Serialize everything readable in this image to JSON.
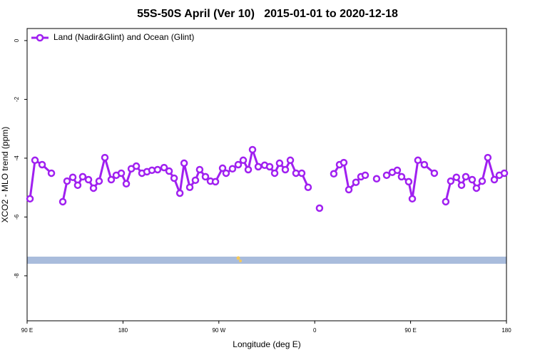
{
  "chart_data": {
    "type": "line",
    "title": "55S-50S April (Ver 10)   2015-01-01 to 2020-12-18",
    "x_label": "Longitude (deg E)",
    "y_label": "XCO2 - MLO trend (ppm)",
    "xlim": [
      90,
      540
    ],
    "ylim": [
      -9.53,
      0.41
    ],
    "xticks": [
      {
        "value": 90,
        "label": "90 E"
      },
      180,
      {
        "value": 270,
        "label": "90 W"
      },
      {
        "value": 360,
        "label": "0"
      },
      {
        "value": 450,
        "label": "90 E"
      },
      {
        "value": 540,
        "label": "180"
      }
    ],
    "yticks": [
      0,
      -2,
      -4,
      -6,
      -8
    ],
    "grid": false,
    "legend_position": "top-left",
    "x": [
      92.7,
      97.4,
      104.1,
      112.8,
      118,
      123.5,
      127.5,
      132.9,
      137.5,
      142.2,
      147.6,
      152.3,
      157.6,
      163.0,
      169.0,
      173.7,
      178.4,
      183.1,
      187.8,
      192.5,
      197.8,
      202.5,
      207.2,
      212.5,
      218.6,
      223.3,
      228.0,
      233.4,
      237.4,
      242.7,
      248.0,
      252.0,
      257.4,
      262.1,
      266.8,
      273.5,
      276.8,
      282.8,
      288.2,
      292.9,
      297.6,
      301.6,
      307.0,
      313.0,
      317.7,
      322.4,
      327.0,
      332.4,
      337.1,
      342.4,
      347.8,
      353.8,
      359,
      364.5,
      371,
      377.9,
      383.3,
      387.3,
      392.0,
      398.7,
      403.4,
      407.4,
      413,
      418.1,
      423,
      427.5,
      432.8,
      437.5,
      441.5,
      448.2,
      451.6,
      456.9,
      462.9,
      472.3,
      478,
      483.0,
      487.7,
      493.0,
      497.8,
      501.8,
      507.8,
      511.8,
      517.2,
      522.5,
      528.6,
      533.3,
      538.0
    ],
    "series": [
      {
        "name": "Land (Nadir&Glint) and Ocean (Glint)",
        "color": "#a020f0",
        "values": [
          -5.38,
          -4.07,
          -4.22,
          -4.51,
          null,
          -5.48,
          -4.78,
          -4.65,
          -4.92,
          -4.63,
          -4.73,
          -5.02,
          -4.78,
          -3.98,
          -4.73,
          -4.58,
          -4.51,
          -4.87,
          -4.36,
          -4.27,
          -4.51,
          -4.46,
          -4.41,
          -4.39,
          -4.32,
          -4.44,
          -4.68,
          -5.19,
          -4.17,
          -4.99,
          -4.75,
          -4.39,
          -4.63,
          -4.78,
          -4.8,
          -4.34,
          -4.51,
          -4.36,
          -4.22,
          -4.07,
          -4.39,
          -3.71,
          -4.29,
          -4.24,
          -4.29,
          -4.51,
          -4.17,
          -4.39,
          -4.07,
          -4.51,
          -4.51,
          -4.99,
          null,
          -5.7,
          null,
          -4.53,
          -4.22,
          -4.15,
          -5.07,
          -4.82,
          -4.63,
          -4.58,
          null,
          -4.7,
          null,
          -4.58,
          -4.48,
          -4.41,
          -4.63,
          -4.8,
          -5.38,
          -4.07,
          -4.22,
          -4.51,
          null,
          -5.48,
          -4.78,
          -4.65,
          -4.92,
          -4.63,
          -4.73,
          -5.02,
          -4.78,
          -3.98,
          -4.73,
          -4.58,
          -4.51
        ]
      }
    ]
  }
}
